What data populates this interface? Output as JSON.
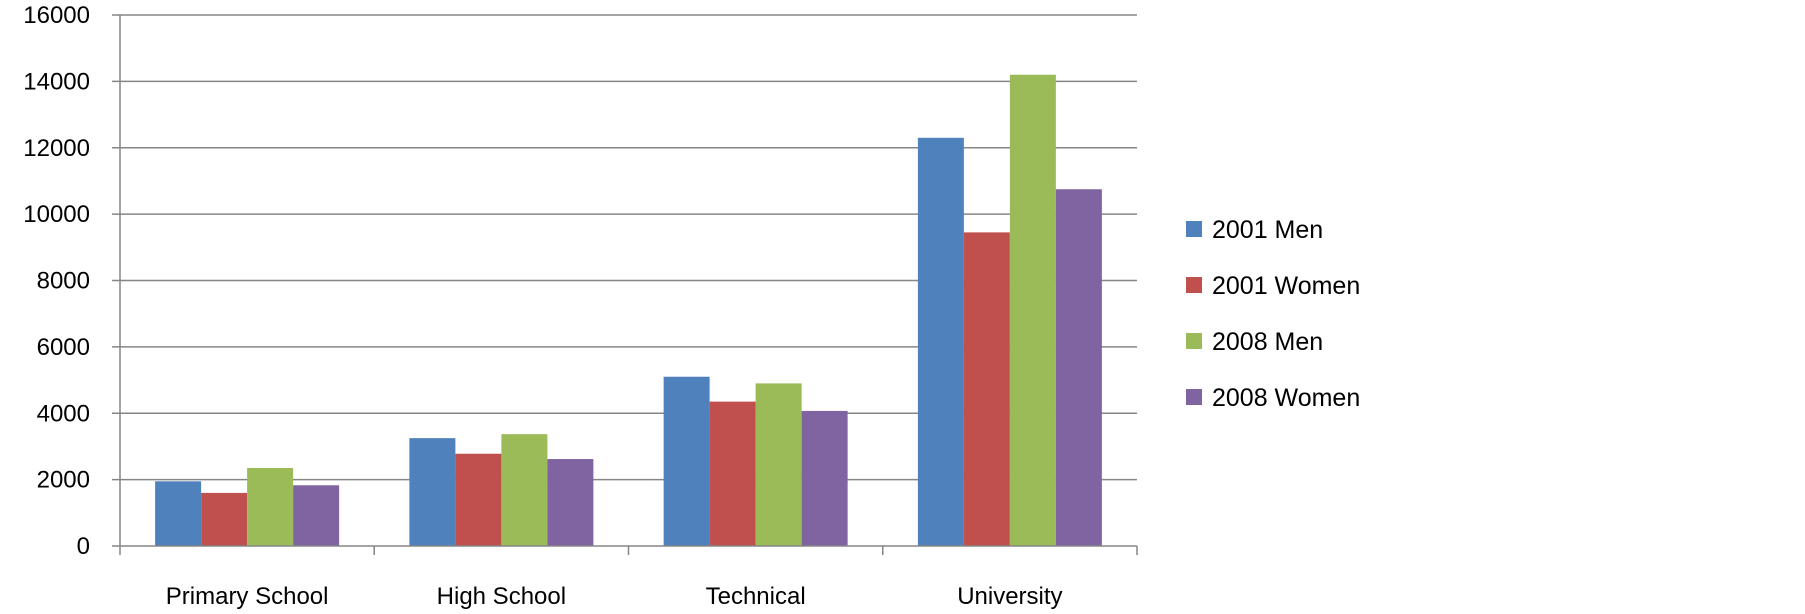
{
  "chart_data": {
    "type": "bar",
    "title": "",
    "xlabel": "",
    "ylabel": "",
    "categories": [
      "Primary School",
      "High School",
      "Technical",
      "University"
    ],
    "series": [
      {
        "name": "2001 Men",
        "color": "#4F81BD",
        "values": [
          1950,
          3250,
          5100,
          12300
        ]
      },
      {
        "name": "2001 Women",
        "color": "#C0504D",
        "values": [
          1600,
          2780,
          4350,
          9450
        ]
      },
      {
        "name": "2008 Men",
        "color": "#9BBB59",
        "values": [
          2350,
          3370,
          4900,
          14200
        ]
      },
      {
        "name": "2008 Women",
        "color": "#8064A2",
        "values": [
          1830,
          2620,
          4070,
          10750
        ]
      }
    ],
    "ylim": [
      0,
      16000
    ],
    "yticks": [
      0,
      2000,
      4000,
      6000,
      8000,
      10000,
      12000,
      14000,
      16000
    ],
    "grid": true,
    "legend_position": "right"
  }
}
